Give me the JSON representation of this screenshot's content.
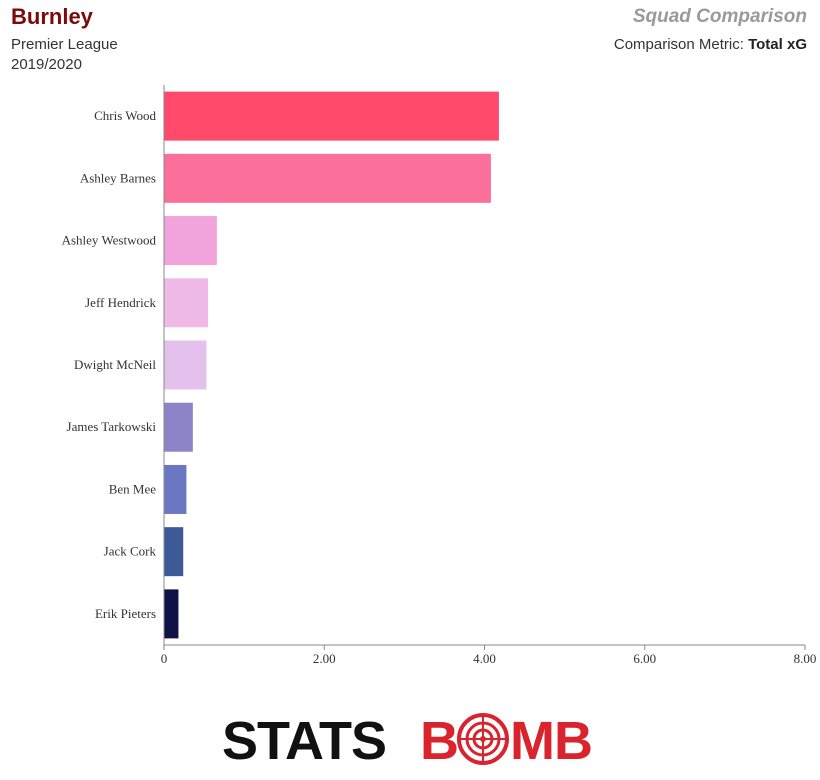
{
  "header": {
    "team": "Burnley",
    "competition": "Premier League",
    "season": "2019/2020",
    "comparison_title": "Squad Comparison",
    "metric_label": "Comparison Metric:",
    "metric_value": "Total xG"
  },
  "brand": {
    "left": "STATS",
    "right_b": "B",
    "right_mb": "MB",
    "left_color": "#111111",
    "right_color": "#d9232d"
  },
  "chart_data": {
    "type": "bar",
    "orientation": "horizontal",
    "categories": [
      "Chris Wood",
      "Ashley Barnes",
      "Ashley Westwood",
      "Jeff Hendrick",
      "Dwight McNeil",
      "James Tarkowski",
      "Ben Mee",
      "Jack Cork",
      "Erik Pieters"
    ],
    "values": [
      4.18,
      4.08,
      0.66,
      0.55,
      0.53,
      0.36,
      0.28,
      0.24,
      0.18
    ],
    "colors": [
      "#ff4a6b",
      "#fb6f9b",
      "#f2a3db",
      "#efb9e8",
      "#e4c1ec",
      "#8d84c8",
      "#6b77c2",
      "#3c5a97",
      "#0e1245"
    ],
    "xlim": [
      0,
      8
    ],
    "xticks": [
      0,
      2,
      4,
      6,
      8
    ],
    "xtick_labels": [
      "0",
      "2.00",
      "4.00",
      "6.00",
      "8.00"
    ],
    "grid": false,
    "xlabel": "",
    "ylabel": ""
  }
}
